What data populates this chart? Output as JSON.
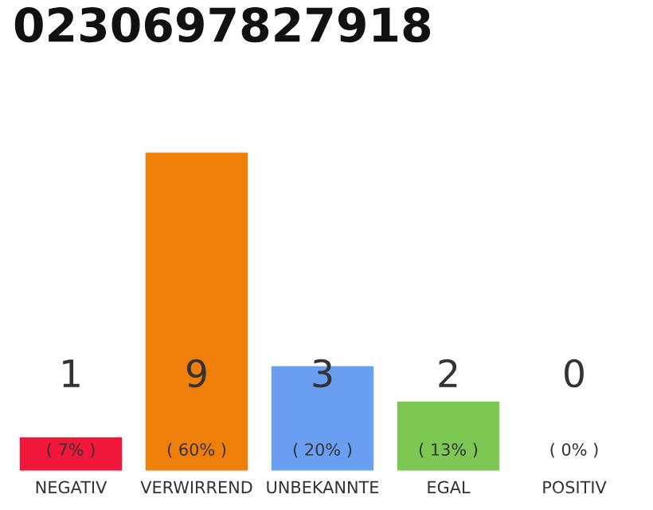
{
  "chart_data": {
    "type": "bar",
    "title": "0230697827918",
    "categories": [
      "NEGATIV",
      "VERWIRREND",
      "UNBEKANNTE",
      "EGAL",
      "POSITIV"
    ],
    "values": [
      1,
      9,
      3,
      2,
      0
    ],
    "colors": [
      "#f0173b",
      "#f07f0a",
      "#6a9ef0",
      "#7cc852",
      null
    ],
    "ylim": [
      0,
      9
    ],
    "tick_labels": "x",
    "data_labels": true,
    "annotations": [
      "( 7% )",
      "( 60% )",
      "( 20% )",
      "( 13% )",
      "( 0% )"
    ]
  }
}
